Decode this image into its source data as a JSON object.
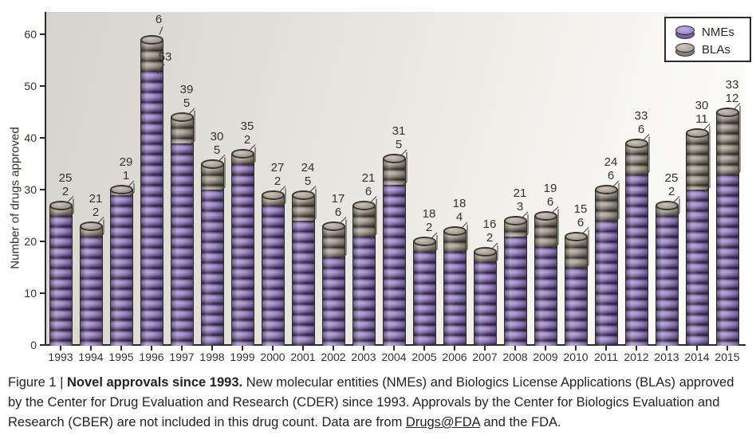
{
  "chart_data": {
    "type": "bar",
    "stacked": true,
    "ylabel": "Number of drugs approved",
    "ylim": [
      0,
      62
    ],
    "yticks": [
      0,
      10,
      20,
      30,
      40,
      50,
      60
    ],
    "grid": false,
    "legend_position": "top-right",
    "categories": [
      "1993",
      "1994",
      "1995",
      "1996",
      "1997",
      "1998",
      "1999",
      "2000",
      "2001",
      "2002",
      "2003",
      "2004",
      "2005",
      "2006",
      "2007",
      "2008",
      "2009",
      "2010",
      "2011",
      "2012",
      "2013",
      "2014",
      "2015"
    ],
    "series": [
      {
        "name": "NMEs",
        "color": "#8d76b5",
        "values": [
          25,
          21,
          29,
          53,
          39,
          30,
          35,
          27,
          24,
          17,
          21,
          31,
          18,
          18,
          16,
          21,
          19,
          15,
          24,
          33,
          25,
          30,
          33
        ]
      },
      {
        "name": "BLAs",
        "color": "#9a938a",
        "values": [
          2,
          2,
          1,
          6,
          5,
          5,
          2,
          2,
          5,
          6,
          6,
          5,
          2,
          4,
          2,
          3,
          6,
          6,
          6,
          6,
          2,
          11,
          12
        ]
      }
    ],
    "side_label_categories": [
      "1996"
    ]
  },
  "legend": {
    "icons": [
      "nmes-coin-icon",
      "blas-coin-icon"
    ]
  },
  "caption": {
    "segments": [
      {
        "text": "Figure 1 | ",
        "style": "regular"
      },
      {
        "text": "Novel approvals since 1993. ",
        "style": "bold"
      },
      {
        "text": "New molecular entities (NMEs) and Biologics License Applications (BLAs) approved by the Center for Drug Evaluation and Research (CDER) since 1993. Approvals by the Center for Biologics Evaluation and Research (CBER) are not included in this drug count. Data are from ",
        "style": "regular"
      },
      {
        "text": "Drugs@FDA",
        "style": "link"
      },
      {
        "text": " and the FDA.",
        "style": "regular"
      }
    ]
  },
  "colors": {
    "nme_purple": "#8d76b5",
    "bla_gray": "#9a938a",
    "axis": "#2b2b2b",
    "leader_line": "#45413b",
    "plot_bg_dark": "#d5d4cc",
    "plot_bg_light": "#fdfdfb"
  }
}
